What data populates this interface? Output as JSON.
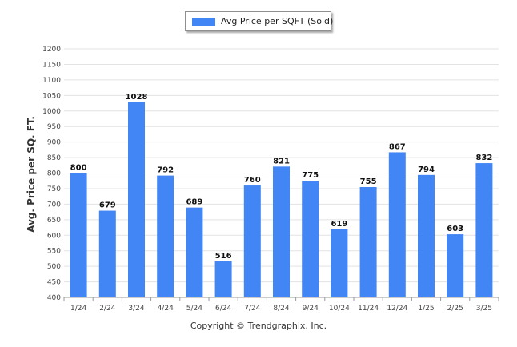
{
  "chart_data": {
    "type": "bar",
    "categories": [
      "1/24",
      "2/24",
      "3/24",
      "4/24",
      "5/24",
      "6/24",
      "7/24",
      "8/24",
      "9/24",
      "10/24",
      "11/24",
      "12/24",
      "1/25",
      "2/25",
      "3/25"
    ],
    "series": [
      {
        "name": "Avg Price per SQFT (Sold)",
        "values": [
          800,
          679,
          1028,
          792,
          689,
          516,
          760,
          821,
          775,
          619,
          755,
          867,
          794,
          603,
          832
        ],
        "color": "#4285f4"
      }
    ],
    "xlabel": "",
    "ylabel": "Avg. Price per SQ. FT.",
    "ylim": [
      400,
      1200
    ],
    "yticks": [
      400,
      450,
      500,
      550,
      600,
      650,
      700,
      750,
      800,
      850,
      900,
      950,
      1000,
      1050,
      1100,
      1150,
      1200
    ],
    "grid": true,
    "legend": "top-center",
    "data_labels": true
  },
  "footer": "Copyright © Trendgraphix, Inc.",
  "colors": {
    "bar": "#4285f4",
    "grid": "#e3e3e3",
    "axis": "#9a9a9a"
  }
}
